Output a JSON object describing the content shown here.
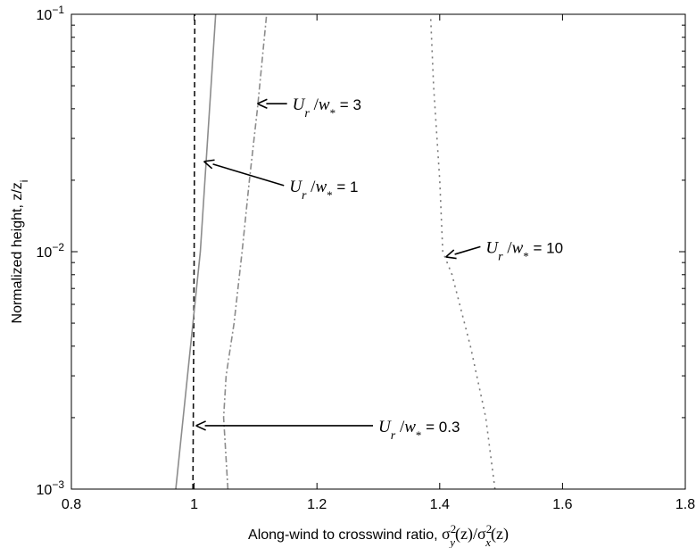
{
  "chart_data": {
    "type": "line",
    "xlabel_text": "Along-wind to crosswind ratio,",
    "ylabel": "Normalized height, z/z",
    "ylabel_sub": "i",
    "xlim": [
      0.8,
      1.8
    ],
    "ylim": [
      0.001,
      0.1
    ],
    "y_scale": "log",
    "grid": false,
    "x_ticks": [
      0.8,
      1.0,
      1.2,
      1.4,
      1.6,
      1.8
    ],
    "x_tick_labels": [
      "0.8",
      "1",
      "1.2",
      "1.4",
      "1.6",
      "1.8"
    ],
    "y_ticks": [
      0.001,
      0.01,
      0.1
    ],
    "y_tick_labels": [
      {
        "base": "10",
        "exp": "−3"
      },
      {
        "base": "10",
        "exp": "−2"
      },
      {
        "base": "10",
        "exp": "−1"
      }
    ],
    "series": [
      {
        "style": "dashed",
        "color": "#111111",
        "points": [
          [
            0.998,
            0.001
          ],
          [
            1.0,
            0.01
          ],
          [
            1.001,
            0.1
          ]
        ]
      },
      {
        "style": "solid",
        "color": "#8c8c8c",
        "points": [
          [
            0.97,
            0.001
          ],
          [
            1.01,
            0.01
          ],
          [
            1.035,
            0.1
          ]
        ]
      },
      {
        "style": "dashdot",
        "color": "#8c8c8c",
        "points": [
          [
            1.055,
            0.001
          ],
          [
            1.048,
            0.002
          ],
          [
            1.052,
            0.003
          ],
          [
            1.065,
            0.005
          ],
          [
            1.078,
            0.01
          ],
          [
            1.09,
            0.02
          ],
          [
            1.103,
            0.04
          ],
          [
            1.118,
            0.1
          ]
        ]
      },
      {
        "style": "dotted",
        "color": "#7a7a7a",
        "points": [
          [
            1.49,
            0.001
          ],
          [
            1.475,
            0.002
          ],
          [
            1.45,
            0.004
          ],
          [
            1.42,
            0.008
          ],
          [
            1.405,
            0.01
          ],
          [
            1.4,
            0.02
          ],
          [
            1.39,
            0.05
          ],
          [
            1.385,
            0.1
          ]
        ]
      }
    ],
    "annotations": [
      {
        "label": "0.3",
        "tip": [
          1.0,
          0.00185
        ],
        "text_at": [
          1.3,
          0.00185
        ]
      },
      {
        "label": "1",
        "tip": [
          1.013,
          0.024
        ],
        "text_at": [
          1.155,
          0.019
        ]
      },
      {
        "label": "3",
        "tip": [
          1.1,
          0.042
        ],
        "text_at": [
          1.16,
          0.042
        ]
      },
      {
        "label": "10",
        "tip": [
          1.407,
          0.0095
        ],
        "text_at": [
          1.475,
          0.0105
        ]
      }
    ]
  }
}
